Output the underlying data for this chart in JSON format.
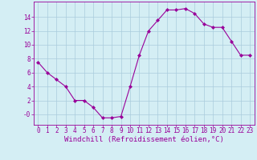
{
  "x": [
    0,
    1,
    2,
    3,
    4,
    5,
    6,
    7,
    8,
    9,
    10,
    11,
    12,
    13,
    14,
    15,
    16,
    17,
    18,
    19,
    20,
    21,
    22,
    23
  ],
  "y": [
    7.5,
    6.0,
    5.0,
    4.0,
    2.0,
    2.0,
    1.0,
    -0.5,
    -0.5,
    -0.3,
    4.0,
    8.5,
    12.0,
    13.5,
    15.0,
    15.0,
    15.2,
    14.5,
    13.0,
    12.5,
    12.5,
    10.5,
    8.5,
    8.5
  ],
  "line_color": "#990099",
  "marker": "D",
  "marker_size": 2,
  "bg_color": "#d4eef4",
  "grid_color": "#aaccdd",
  "xlabel": "Windchill (Refroidissement éolien,°C)",
  "xlim": [
    -0.5,
    23.5
  ],
  "ylim": [
    -1.5,
    16.2
  ],
  "yticks": [
    0,
    2,
    4,
    6,
    8,
    10,
    12,
    14
  ],
  "ytick_labels": [
    "-0",
    "2",
    "4",
    "6",
    "8",
    "10",
    "12",
    "14"
  ],
  "xticks": [
    0,
    1,
    2,
    3,
    4,
    5,
    6,
    7,
    8,
    9,
    10,
    11,
    12,
    13,
    14,
    15,
    16,
    17,
    18,
    19,
    20,
    21,
    22,
    23
  ],
  "label_fontsize": 6.5,
  "tick_fontsize": 5.5
}
